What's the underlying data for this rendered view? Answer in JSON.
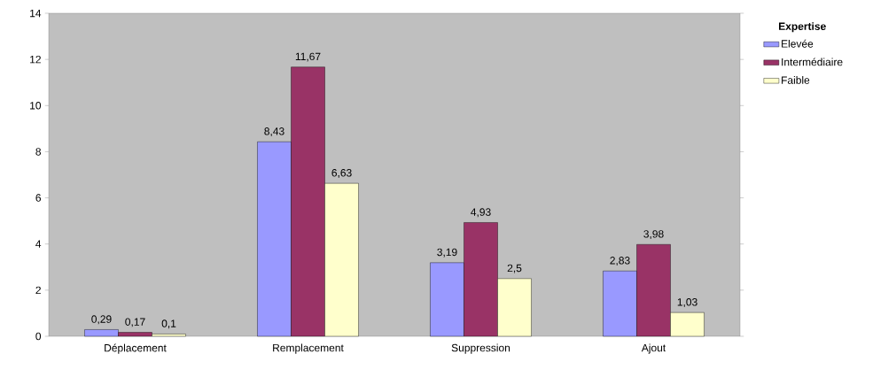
{
  "chart_data": {
    "type": "bar",
    "legend_title": "Expertise",
    "categories": [
      "Déplacement",
      "Remplacement",
      "Suppression",
      "Ajout"
    ],
    "series": [
      {
        "name": "Elevée",
        "color": "#9999ff",
        "values": [
          0.29,
          8.43,
          3.19,
          2.83
        ],
        "value_labels": [
          "0,29",
          "8,43",
          "3,19",
          "2,83"
        ]
      },
      {
        "name": "Intermédiaire",
        "color": "#993366",
        "values": [
          0.17,
          11.67,
          4.93,
          3.98
        ],
        "value_labels": [
          "0,17",
          "11,67",
          "4,93",
          "3,98"
        ]
      },
      {
        "name": "Faible",
        "color": "#ffffcc",
        "values": [
          0.1,
          6.63,
          2.5,
          1.03
        ],
        "value_labels": [
          "0,1",
          "6,63",
          "2,5",
          "1,03"
        ]
      }
    ],
    "ylim": [
      0,
      14
    ],
    "yticks": [
      0,
      2,
      4,
      6,
      8,
      10,
      12,
      14
    ],
    "grid": false,
    "legend": "right"
  }
}
